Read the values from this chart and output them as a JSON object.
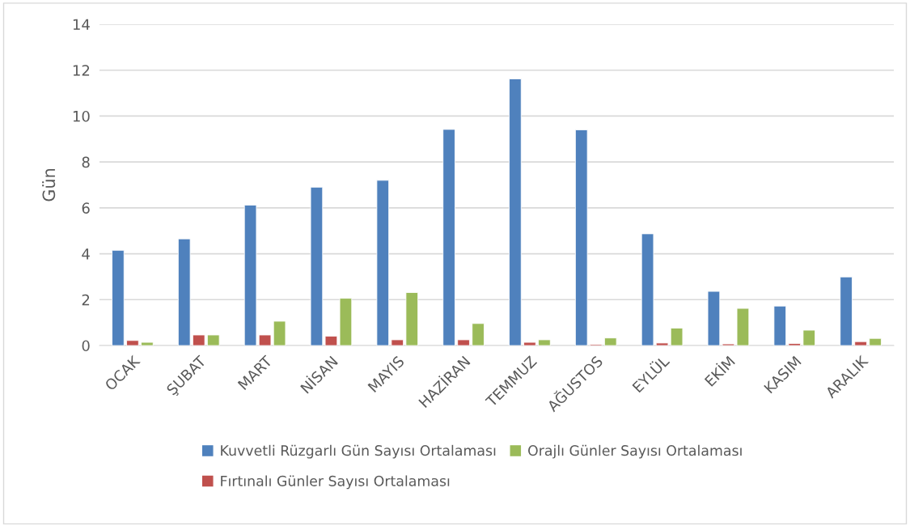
{
  "chart_data": {
    "type": "bar",
    "ylabel": "Gün",
    "categories": [
      "OCAK",
      "ŞUBAT",
      "MART",
      "NİSAN",
      "MAYIS",
      "HAZİRAN",
      "TEMMUZ",
      "AĞUSTOS",
      "EYLÜL",
      "EKİM",
      "KASIM",
      "ARALIK"
    ],
    "series": [
      {
        "name": "Kuvvetli Rüzgarlı Gün Sayısı Ortalaması",
        "color": "#4f81bd",
        "values": [
          4.15,
          4.65,
          6.12,
          6.9,
          7.2,
          9.42,
          11.62,
          9.4,
          4.87,
          2.36,
          1.72,
          2.99
        ]
      },
      {
        "name": "Fırtınalı Günler Sayısı Ortalaması",
        "color": "#c0504d",
        "values": [
          0.22,
          0.46,
          0.46,
          0.41,
          0.25,
          0.25,
          0.14,
          0.05,
          0.11,
          0.07,
          0.09,
          0.17
        ]
      },
      {
        "name": "Orajlı Günler Sayısı Ortalaması",
        "color": "#9bbb59",
        "values": [
          0.14,
          0.46,
          1.06,
          2.06,
          2.31,
          0.96,
          0.25,
          0.33,
          0.76,
          1.62,
          0.67,
          0.31
        ]
      }
    ],
    "ylim": [
      0,
      14
    ],
    "yticks": [
      0,
      2,
      4,
      6,
      8,
      10,
      12,
      14
    ],
    "grid": "y",
    "legend": "bottom"
  }
}
